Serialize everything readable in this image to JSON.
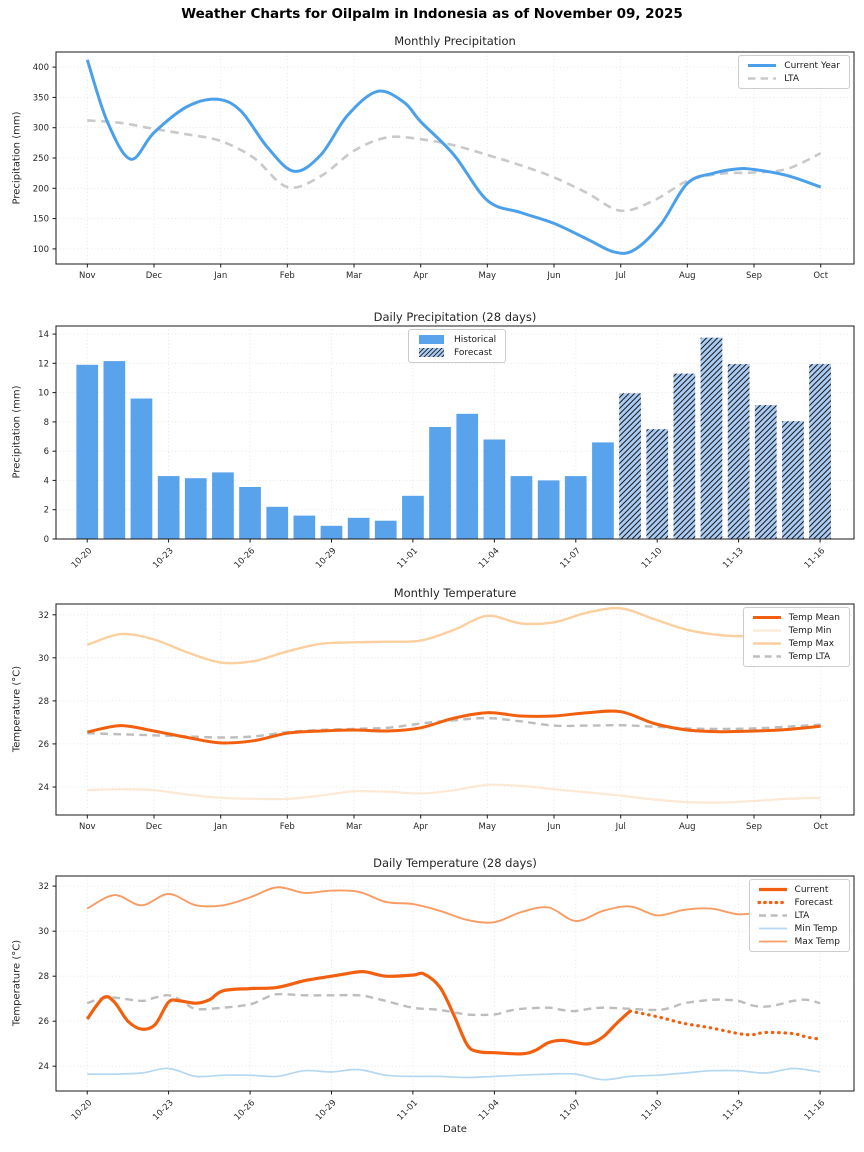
{
  "figure": {
    "title": "Weather Charts for Oilpalm in Indonesia as of November 09, 2025",
    "xlabel": "Date"
  },
  "colors": {
    "current_year_blue": "#4aa0ea",
    "lta_gray_precip": "#c9c9c9",
    "lta_gray_temp": "#bdbdbd",
    "bar_historical_blue": "#58a3eb",
    "bar_forecast_face": "#a9cbf4",
    "bar_hatch": "#1c1c1c",
    "temp_mean_orange": "#f2600f",
    "temp_min_pale": "#fde9d3",
    "temp_max_pale": "#fbcf9e",
    "daily_max_salmon": "#f89c64",
    "daily_min_lightblue": "#b5d8f2",
    "grid": "#e2e2e2",
    "spine": "#1a1a1a"
  },
  "chart_data": [
    {
      "type": "line",
      "title": "Monthly Precipitation",
      "ylabel": "Precipitation (mm)",
      "xlim": [
        -0.47,
        11.5
      ],
      "ylim": [
        75,
        425
      ],
      "y_ticks": [
        100,
        150,
        200,
        250,
        300,
        350,
        400
      ],
      "x_ticks": {
        "positions": [
          0,
          1,
          2,
          3,
          4,
          5,
          6,
          7,
          8,
          9,
          10,
          11
        ],
        "labels": [
          "Nov",
          "Dec",
          "Jan",
          "Feb",
          "Mar",
          "Apr",
          "May",
          "Jun",
          "Jul",
          "Aug",
          "Sep",
          "Oct"
        ],
        "rotate": false
      },
      "legend": {
        "position": "top-right",
        "entries": [
          {
            "label": "Current Year",
            "swatch": "line",
            "color": "#4aa0ea",
            "dash": "solid",
            "width": 3
          },
          {
            "label": "LTA",
            "swatch": "line",
            "color": "#c9c9c9",
            "dash": "dashed",
            "width": 2.6
          }
        ]
      },
      "series": [
        {
          "name": "LTA",
          "color": "#c9c9c9",
          "dash": "dashed",
          "width": 2.6,
          "x": [
            0,
            0.5,
            1,
            1.5,
            2,
            2.5,
            3,
            3.5,
            4,
            4.5,
            5,
            5.5,
            6,
            6.5,
            7,
            7.5,
            8,
            8.5,
            9,
            9.5,
            10,
            10.5,
            11
          ],
          "y": [
            312,
            308,
            298,
            289,
            278,
            250,
            202,
            220,
            262,
            284,
            281,
            271,
            255,
            238,
            218,
            192,
            163,
            180,
            212,
            224,
            226,
            232,
            258
          ]
        },
        {
          "name": "Current Year",
          "color": "#4aa0ea",
          "dash": "solid",
          "width": 3,
          "x": [
            0,
            0.3,
            0.65,
            1,
            1.5,
            1.95,
            2.3,
            2.7,
            3.1,
            3.5,
            3.9,
            4.35,
            4.75,
            5,
            5.5,
            6,
            6.5,
            7,
            7.5,
            7.9,
            8.2,
            8.6,
            9,
            9.4,
            9.75,
            10,
            10.5,
            11
          ],
          "y": [
            412,
            310,
            248,
            292,
            335,
            347,
            328,
            268,
            228,
            255,
            320,
            360,
            342,
            310,
            255,
            180,
            160,
            142,
            116,
            95,
            98,
            140,
            208,
            225,
            232,
            231,
            221,
            202
          ]
        }
      ]
    },
    {
      "type": "bar",
      "title": "Daily Precipitation (28 days)",
      "ylabel": "Precipitation (mm)",
      "xlim": [
        -1.15,
        28.25
      ],
      "ylim": [
        0,
        14.55
      ],
      "y_ticks": [
        0,
        2,
        4,
        6,
        8,
        10,
        12,
        14
      ],
      "x_ticks": {
        "positions": [
          0,
          3,
          6,
          9,
          12,
          15,
          18,
          21,
          24,
          27
        ],
        "labels": [
          "10-20",
          "10-23",
          "10-26",
          "10-29",
          "11-01",
          "11-04",
          "11-07",
          "11-10",
          "11-13",
          "11-16"
        ],
        "rotate": true
      },
      "dates": [
        "10-20",
        "10-21",
        "10-22",
        "10-23",
        "10-24",
        "10-25",
        "10-26",
        "10-27",
        "10-28",
        "10-29",
        "10-30",
        "10-31",
        "11-01",
        "11-02",
        "11-03",
        "11-04",
        "11-05",
        "11-06",
        "11-07",
        "11-08",
        "11-09",
        "11-10",
        "11-11",
        "11-12",
        "11-13",
        "11-14",
        "11-15",
        "11-16"
      ],
      "values": [
        11.9,
        12.15,
        9.6,
        4.3,
        4.15,
        4.55,
        3.55,
        2.2,
        1.6,
        0.9,
        1.45,
        1.25,
        2.95,
        7.65,
        8.55,
        6.8,
        4.3,
        4.0,
        4.3,
        6.6,
        9.95,
        7.5,
        11.3,
        13.75,
        11.95,
        9.15,
        8.05,
        11.95
      ],
      "forecast_start_index": 20,
      "bar": {
        "width": 0.8,
        "historical_color": "#58a3eb",
        "forecast_face": "#a9cbf4",
        "hatch_color": "#1c1c1c"
      },
      "legend": {
        "position": "top-center",
        "entries": [
          {
            "label": "Historical",
            "swatch": "patch",
            "color": "#58a3eb"
          },
          {
            "label": "Forecast",
            "swatch": "hatch-patch",
            "color": "#a9cbf4"
          }
        ]
      }
    },
    {
      "type": "line",
      "title": "Monthly Temperature",
      "ylabel": "Temperature (°C)",
      "xlim": [
        -0.47,
        11.5
      ],
      "ylim": [
        22.7,
        32.5
      ],
      "y_ticks": [
        24,
        26,
        28,
        30,
        32
      ],
      "x_ticks": {
        "positions": [
          0,
          1,
          2,
          3,
          4,
          5,
          6,
          7,
          8,
          9,
          10,
          11
        ],
        "labels": [
          "Nov",
          "Dec",
          "Jan",
          "Feb",
          "Mar",
          "Apr",
          "May",
          "Jun",
          "Jul",
          "Aug",
          "Sep",
          "Oct"
        ],
        "rotate": false
      },
      "legend": {
        "position": "top-right",
        "entries": [
          {
            "label": "Temp Mean",
            "swatch": "line",
            "color": "#f2600f",
            "dash": "solid",
            "width": 3
          },
          {
            "label": "Temp Min",
            "swatch": "line",
            "color": "#fde9d3",
            "dash": "solid",
            "width": 2.2
          },
          {
            "label": "Temp Max",
            "swatch": "line",
            "color": "#fbcf9e",
            "dash": "solid",
            "width": 2.4
          },
          {
            "label": "Temp LTA",
            "swatch": "line",
            "color": "#bdbdbd",
            "dash": "dashed",
            "width": 2.4
          }
        ]
      },
      "series": [
        {
          "name": "Temp Max",
          "color": "#fbcf9e",
          "dash": "solid",
          "width": 2.4,
          "x": [
            0,
            0.5,
            1,
            1.5,
            2,
            2.5,
            3,
            3.5,
            4,
            4.5,
            5,
            5.5,
            6,
            6.5,
            7,
            7.5,
            8,
            8.5,
            9,
            9.5,
            10,
            10.5,
            11
          ],
          "y": [
            30.6,
            31.1,
            30.85,
            30.25,
            29.78,
            29.85,
            30.3,
            30.65,
            30.72,
            30.75,
            30.8,
            31.3,
            31.95,
            31.6,
            31.65,
            32.1,
            32.3,
            31.8,
            31.3,
            31.05,
            31.0,
            31.05,
            31.15
          ]
        },
        {
          "name": "Temp Min",
          "color": "#fde9d3",
          "dash": "solid",
          "width": 2.2,
          "x": [
            0,
            0.5,
            1,
            1.5,
            2,
            2.5,
            3,
            3.5,
            4,
            4.5,
            5,
            5.5,
            6,
            6.5,
            7,
            7.5,
            8,
            8.5,
            9,
            9.5,
            10,
            10.5,
            11
          ],
          "y": [
            23.85,
            23.9,
            23.85,
            23.65,
            23.5,
            23.45,
            23.45,
            23.6,
            23.8,
            23.78,
            23.7,
            23.85,
            24.1,
            24.05,
            23.9,
            23.75,
            23.6,
            23.42,
            23.3,
            23.28,
            23.35,
            23.45,
            23.5
          ]
        },
        {
          "name": "Temp LTA",
          "color": "#bdbdbd",
          "dash": "dashed",
          "width": 2.4,
          "x": [
            0,
            0.5,
            1,
            1.5,
            2,
            2.5,
            3,
            3.5,
            4,
            4.5,
            5,
            5.5,
            6,
            6.5,
            7,
            7.5,
            8,
            8.5,
            9,
            9.5,
            10,
            10.5,
            11
          ],
          "y": [
            26.5,
            26.45,
            26.4,
            26.35,
            26.3,
            26.35,
            26.55,
            26.65,
            26.7,
            26.75,
            26.95,
            27.1,
            27.2,
            27.05,
            26.85,
            26.85,
            26.87,
            26.8,
            26.72,
            26.7,
            26.72,
            26.8,
            26.9
          ]
        },
        {
          "name": "Temp Mean",
          "color": "#f2600f",
          "dash": "solid",
          "width": 3,
          "x": [
            0,
            0.5,
            1,
            1.5,
            2,
            2.5,
            3,
            3.5,
            4,
            4.5,
            5,
            5.5,
            6,
            6.5,
            7,
            7.5,
            8,
            8.5,
            9,
            9.5,
            10,
            10.5,
            11
          ],
          "y": [
            26.55,
            26.85,
            26.6,
            26.3,
            26.05,
            26.15,
            26.5,
            26.6,
            26.65,
            26.6,
            26.75,
            27.2,
            27.45,
            27.3,
            27.3,
            27.45,
            27.5,
            26.95,
            26.65,
            26.57,
            26.6,
            26.67,
            26.82
          ]
        }
      ]
    },
    {
      "type": "line",
      "title": "Daily Temperature (28 days)",
      "ylabel": "Temperature (°C)",
      "xlabel": "Date",
      "xlim": [
        -1.15,
        28.25
      ],
      "ylim": [
        22.9,
        32.45
      ],
      "y_ticks": [
        24,
        26,
        28,
        30,
        32
      ],
      "x_ticks": {
        "positions": [
          0,
          3,
          6,
          9,
          12,
          15,
          18,
          21,
          24,
          27
        ],
        "labels": [
          "10-20",
          "10-23",
          "10-26",
          "10-29",
          "11-01",
          "11-04",
          "11-07",
          "11-10",
          "11-13",
          "11-16"
        ],
        "rotate": true
      },
      "legend": {
        "position": "top-right",
        "entries": [
          {
            "label": "Current",
            "swatch": "line",
            "color": "#f2600f",
            "dash": "solid",
            "width": 3.2
          },
          {
            "label": "Forecast",
            "swatch": "line",
            "color": "#f2600f",
            "dash": "dotted",
            "width": 3.2
          },
          {
            "label": "LTA",
            "swatch": "line",
            "color": "#bdbdbd",
            "dash": "dashed",
            "width": 2.4
          },
          {
            "label": "Min Temp",
            "swatch": "line",
            "color": "#b5d8f2",
            "dash": "solid",
            "width": 1.8
          },
          {
            "label": "Max Temp",
            "swatch": "line",
            "color": "#f89c64",
            "dash": "solid",
            "width": 1.8
          }
        ]
      },
      "series": [
        {
          "name": "Max Temp",
          "color": "#f89c64",
          "dash": "solid",
          "width": 1.9,
          "x": [
            0,
            1,
            2,
            3,
            4,
            5,
            6,
            7,
            8,
            9,
            10,
            11,
            12,
            13,
            14,
            15,
            16,
            17,
            18,
            19,
            20,
            21,
            22,
            23,
            24,
            25,
            26,
            27
          ],
          "y": [
            31.0,
            31.6,
            31.15,
            31.65,
            31.15,
            31.15,
            31.5,
            31.95,
            31.7,
            31.8,
            31.75,
            31.3,
            31.2,
            30.9,
            30.5,
            30.4,
            30.85,
            31.05,
            30.45,
            30.9,
            31.1,
            30.7,
            30.95,
            31.0,
            30.75,
            30.85,
            30.9,
            30.95
          ]
        },
        {
          "name": "Min Temp",
          "color": "#b5d8f2",
          "dash": "solid",
          "width": 1.7,
          "x": [
            0,
            1,
            2,
            3,
            4,
            5,
            6,
            7,
            8,
            9,
            10,
            11,
            12,
            13,
            14,
            15,
            16,
            17,
            18,
            19,
            20,
            21,
            22,
            23,
            24,
            25,
            26,
            27
          ],
          "y": [
            23.65,
            23.65,
            23.7,
            23.9,
            23.55,
            23.6,
            23.6,
            23.55,
            23.8,
            23.75,
            23.85,
            23.6,
            23.55,
            23.55,
            23.5,
            23.55,
            23.6,
            23.65,
            23.65,
            23.4,
            23.55,
            23.6,
            23.7,
            23.8,
            23.8,
            23.7,
            23.9,
            23.75
          ]
        },
        {
          "name": "LTA",
          "color": "#bdbdbd",
          "dash": "dashed",
          "width": 2.4,
          "x": [
            0,
            0.5,
            1,
            2,
            2.5,
            3,
            3.5,
            4,
            5,
            6,
            6.5,
            7,
            8,
            9,
            10,
            10.5,
            11,
            12,
            13,
            14,
            15,
            15.5,
            16,
            17,
            17.5,
            18,
            18.5,
            19,
            20,
            21,
            21.5,
            22,
            23,
            23.5,
            24,
            24.5,
            25,
            25.5,
            26,
            26.5,
            27
          ],
          "y": [
            26.8,
            27.0,
            27.05,
            26.9,
            27.05,
            27.15,
            26.9,
            26.55,
            26.6,
            26.75,
            27.0,
            27.2,
            27.15,
            27.15,
            27.15,
            27.05,
            26.9,
            26.6,
            26.5,
            26.3,
            26.3,
            26.45,
            26.55,
            26.6,
            26.5,
            26.45,
            26.55,
            26.6,
            26.55,
            26.5,
            26.6,
            26.8,
            26.95,
            26.95,
            26.9,
            26.7,
            26.65,
            26.75,
            26.9,
            26.95,
            26.8
          ]
        },
        {
          "name": "Current",
          "color": "#f2600f",
          "dash": "solid",
          "width": 3.2,
          "x": [
            0,
            0.6,
            1,
            1.5,
            2,
            2.5,
            3,
            3.4,
            4,
            4.5,
            5,
            6,
            7,
            8,
            9,
            9.5,
            10.2,
            11,
            12,
            12.4,
            13,
            13.5,
            14,
            14.4,
            15,
            16,
            16.5,
            17,
            17.5,
            18,
            18.5,
            19,
            19.5,
            20
          ],
          "y": [
            26.1,
            27.05,
            26.85,
            26.0,
            25.65,
            25.85,
            26.85,
            26.9,
            26.8,
            26.95,
            27.35,
            27.45,
            27.5,
            27.8,
            28.0,
            28.1,
            28.2,
            28.0,
            28.05,
            28.1,
            27.5,
            26.3,
            24.95,
            24.65,
            24.6,
            24.55,
            24.7,
            25.05,
            25.15,
            25.05,
            25.0,
            25.3,
            25.9,
            26.45
          ]
        },
        {
          "name": "Forecast",
          "color": "#f2600f",
          "dash": "dotted",
          "width": 3.2,
          "x": [
            20,
            21,
            22,
            23,
            24,
            24.5,
            25,
            26,
            26.5,
            27
          ],
          "y": [
            26.45,
            26.2,
            25.9,
            25.7,
            25.45,
            25.4,
            25.5,
            25.45,
            25.3,
            25.2
          ]
        }
      ]
    }
  ]
}
